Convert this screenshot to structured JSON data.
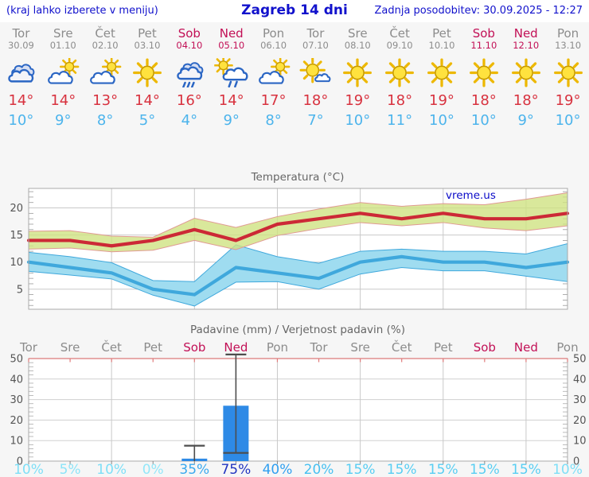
{
  "header": {
    "left_note": "(kraj lahko izberete v meniju)",
    "title": "Zagreb 14 dni",
    "updated": "Zadnja posodobitev: 30.09.2025 - 12:27"
  },
  "watermark": "vreme.us",
  "colors": {
    "link_blue": "#1111cc",
    "weekday_label": "#8c8c8c",
    "weekend_label": "#c21056",
    "temp_max_text": "#d8323f",
    "temp_min_text": "#4cb4ec",
    "bar_blue": "#2e8ae6"
  },
  "forecast": {
    "days": [
      {
        "name": "Tor",
        "date": "30.09",
        "icon": "cloudy",
        "tmax": "14°",
        "tmin": "10°",
        "weekend": false
      },
      {
        "name": "Sre",
        "date": "01.10",
        "icon": "partly-cloudy",
        "tmax": "14°",
        "tmin": "9°",
        "weekend": false
      },
      {
        "name": "Čet",
        "date": "02.10",
        "icon": "partly-cloudy",
        "tmax": "13°",
        "tmin": "8°",
        "weekend": false
      },
      {
        "name": "Pet",
        "date": "03.10",
        "icon": "sunny",
        "tmax": "14°",
        "tmin": "5°",
        "weekend": false
      },
      {
        "name": "Sob",
        "date": "04.10",
        "icon": "rain",
        "tmax": "16°",
        "tmin": "4°",
        "weekend": true
      },
      {
        "name": "Ned",
        "date": "05.10",
        "icon": "sun-rain",
        "tmax": "14°",
        "tmin": "9°",
        "weekend": true
      },
      {
        "name": "Pon",
        "date": "06.10",
        "icon": "partly-cloudy",
        "tmax": "17°",
        "tmin": "8°",
        "weekend": false
      },
      {
        "name": "Tor",
        "date": "07.10",
        "icon": "mostly-sunny",
        "tmax": "18°",
        "tmin": "7°",
        "weekend": false
      },
      {
        "name": "Sre",
        "date": "08.10",
        "icon": "sunny",
        "tmax": "19°",
        "tmin": "10°",
        "weekend": false
      },
      {
        "name": "Čet",
        "date": "09.10",
        "icon": "sunny",
        "tmax": "18°",
        "tmin": "11°",
        "weekend": false
      },
      {
        "name": "Pet",
        "date": "10.10",
        "icon": "sunny",
        "tmax": "19°",
        "tmin": "10°",
        "weekend": false
      },
      {
        "name": "Sob",
        "date": "11.10",
        "icon": "sunny",
        "tmax": "18°",
        "tmin": "10°",
        "weekend": true
      },
      {
        "name": "Ned",
        "date": "12.10",
        "icon": "sunny",
        "tmax": "18°",
        "tmin": "9°",
        "weekend": true
      },
      {
        "name": "Pon",
        "date": "13.10",
        "icon": "sunny",
        "tmax": "19°",
        "tmin": "10°",
        "weekend": false
      }
    ]
  },
  "chart_data": [
    {
      "type": "line",
      "title": "Temperatura (°C)",
      "categories": [
        "30.09",
        "01.10",
        "02.10",
        "03.10",
        "04.10",
        "05.10",
        "06.10",
        "07.10",
        "08.10",
        "09.10",
        "10.10",
        "11.10",
        "12.10",
        "13.10"
      ],
      "series": [
        {
          "name": "temperatura max",
          "kind": "line",
          "color": "#cc2936",
          "values": [
            14,
            14,
            13,
            14,
            16,
            14,
            17,
            18,
            19,
            18,
            19,
            18,
            18,
            19
          ]
        },
        {
          "name": "razpon max",
          "kind": "band",
          "fill": "rgba(208,226,130,0.8)",
          "edge": "#e09a93",
          "upper": [
            15.7,
            15.8,
            14.8,
            14.6,
            18.1,
            16.4,
            18.4,
            19.8,
            21.0,
            20.3,
            20.8,
            20.6,
            21.6,
            22.8
          ],
          "lower": [
            12.4,
            12.6,
            11.9,
            12.2,
            14.0,
            12.3,
            14.9,
            16.2,
            17.3,
            16.7,
            17.3,
            16.3,
            15.8,
            16.7
          ]
        },
        {
          "name": "temperatura min",
          "kind": "line",
          "color": "#3fa8dc",
          "values": [
            10,
            9,
            8,
            5,
            4,
            9,
            8,
            7,
            10,
            11,
            10,
            10,
            9,
            10
          ]
        },
        {
          "name": "razpon min",
          "kind": "band",
          "fill": "#9fdcf0",
          "edge": "#3fa8dc",
          "upper": [
            11.8,
            11.0,
            9.9,
            6.6,
            6.4,
            13.2,
            11.0,
            9.8,
            12.0,
            12.4,
            12.0,
            12.0,
            11.5,
            13.4
          ],
          "lower": [
            8.3,
            7.6,
            6.9,
            3.9,
            1.9,
            6.3,
            6.4,
            5.0,
            7.8,
            9.0,
            8.4,
            8.4,
            7.4,
            6.4
          ]
        }
      ],
      "yticks": [
        5,
        10,
        15,
        20
      ],
      "ylim": [
        1.3,
        23.6
      ],
      "grid": true,
      "legend": "none",
      "watermark": "vreme.us"
    },
    {
      "type": "bar",
      "title": "Padavine (mm) / Verjetnost padavin (%)",
      "day_labels": [
        {
          "label": "Tor",
          "weekend": false
        },
        {
          "label": "Sre",
          "weekend": false
        },
        {
          "label": "Čet",
          "weekend": false
        },
        {
          "label": "Pet",
          "weekend": false
        },
        {
          "label": "Sob",
          "weekend": true
        },
        {
          "label": "Ned",
          "weekend": true
        },
        {
          "label": "Pon",
          "weekend": false
        },
        {
          "label": "Tor",
          "weekend": false
        },
        {
          "label": "Sre",
          "weekend": false
        },
        {
          "label": "Čet",
          "weekend": false
        },
        {
          "label": "Pet",
          "weekend": false
        },
        {
          "label": "Sob",
          "weekend": true
        },
        {
          "label": "Ned",
          "weekend": true
        },
        {
          "label": "Pon",
          "weekend": false
        }
      ],
      "values_mm": [
        0,
        0,
        0,
        0,
        1.2,
        27,
        0,
        0,
        0,
        0,
        0,
        0,
        0,
        0
      ],
      "whiskers_mm": [
        null,
        null,
        null,
        null,
        [
          0,
          7.5
        ],
        [
          4,
          52
        ],
        null,
        null,
        null,
        null,
        null,
        null,
        null,
        null
      ],
      "probabilities": [
        "10%",
        "5%",
        "10%",
        "0%",
        "35%",
        "75%",
        "40%",
        "20%",
        "15%",
        "15%",
        "15%",
        "15%",
        "15%",
        "10%"
      ],
      "prob_colors": [
        "#7edff7",
        "#8ce4f8",
        "#7edff7",
        "#93e7f9",
        "#3aa9ef",
        "#2134c0",
        "#2f9ff0",
        "#46c0f1",
        "#58cef3",
        "#58cef3",
        "#58cef3",
        "#58cef3",
        "#58cef3",
        "#7edff7"
      ],
      "bar_color": "#2e8ae6",
      "yticks": [
        0,
        10,
        20,
        30,
        40,
        50
      ],
      "ylim": [
        0,
        50
      ],
      "grid": true
    }
  ]
}
